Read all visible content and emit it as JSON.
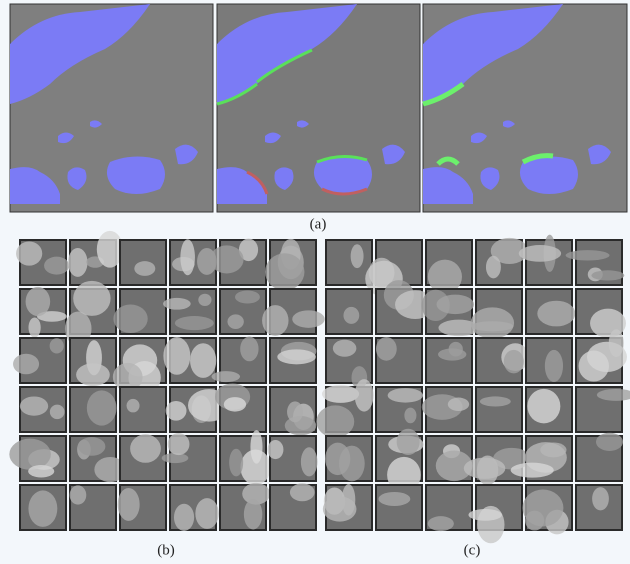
{
  "labels": {
    "a": "(a)",
    "b": "(b)",
    "c": "(c)"
  }
}
